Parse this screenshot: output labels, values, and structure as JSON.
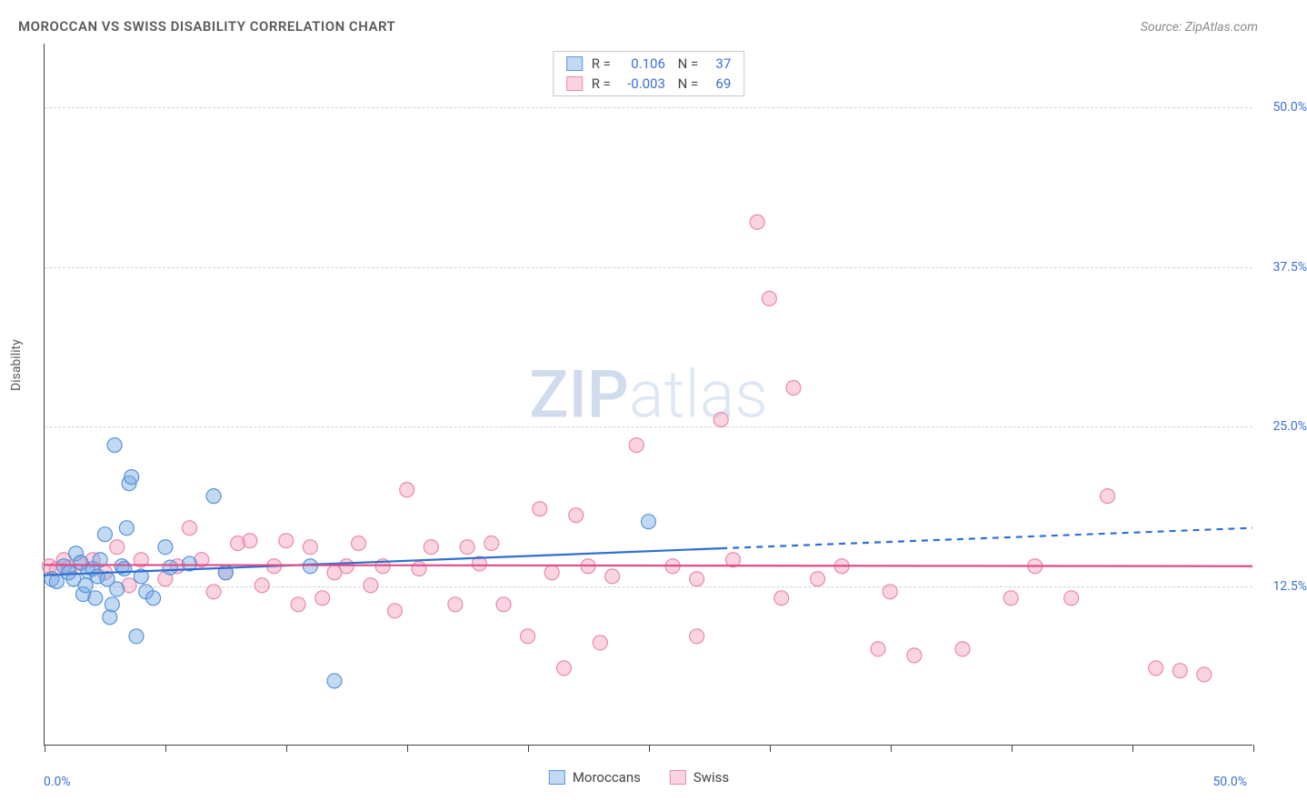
{
  "title": "MOROCCAN VS SWISS DISABILITY CORRELATION CHART",
  "source_label": "Source: ZipAtlas.com",
  "ylabel": "Disability",
  "watermark_a": "ZIP",
  "watermark_b": "atlas",
  "chart": {
    "type": "scatter",
    "xlim": [
      0,
      50
    ],
    "ylim": [
      0,
      55
    ],
    "x_range_labels": [
      "0.0%",
      "50.0%"
    ],
    "ytick_values": [
      12.5,
      25.0,
      37.5,
      50.0
    ],
    "ytick_labels": [
      "12.5%",
      "25.0%",
      "37.5%",
      "50.0%"
    ],
    "xtick_values": [
      0,
      5,
      10,
      15,
      20,
      25,
      30,
      35,
      40,
      45,
      50
    ],
    "grid_color": "#d0d0d0",
    "background_color": "#ffffff",
    "axis_color": "#444444",
    "marker_radius": 8,
    "marker_stroke_width": 1.2,
    "series": [
      {
        "name": "Moroccans",
        "fill": "rgba(120,170,230,0.45)",
        "stroke": "#5a93d6",
        "line_color": "#2f6fd0",
        "R": "0.106",
        "N": "37",
        "trend": {
          "x1": 0,
          "y1": 13.3,
          "x2_solid": 28,
          "y2_solid": 15.4,
          "x2": 50,
          "y2": 17.0
        },
        "points": [
          [
            0.3,
            13.0
          ],
          [
            0.5,
            12.8
          ],
          [
            0.8,
            14.0
          ],
          [
            1.0,
            13.5
          ],
          [
            1.2,
            13.0
          ],
          [
            1.3,
            15.0
          ],
          [
            1.5,
            14.3
          ],
          [
            1.6,
            11.8
          ],
          [
            1.7,
            12.5
          ],
          [
            1.8,
            13.6
          ],
          [
            2.0,
            13.8
          ],
          [
            2.1,
            11.5
          ],
          [
            2.2,
            13.2
          ],
          [
            2.3,
            14.5
          ],
          [
            2.5,
            16.5
          ],
          [
            2.6,
            13.0
          ],
          [
            2.7,
            10.0
          ],
          [
            2.8,
            11.0
          ],
          [
            2.9,
            23.5
          ],
          [
            3.0,
            12.2
          ],
          [
            3.2,
            14.0
          ],
          [
            3.3,
            13.8
          ],
          [
            3.4,
            17.0
          ],
          [
            3.5,
            20.5
          ],
          [
            3.6,
            21.0
          ],
          [
            3.8,
            8.5
          ],
          [
            4.0,
            13.2
          ],
          [
            4.2,
            12.0
          ],
          [
            4.5,
            11.5
          ],
          [
            5.0,
            15.5
          ],
          [
            5.2,
            13.9
          ],
          [
            6.0,
            14.2
          ],
          [
            7.0,
            19.5
          ],
          [
            7.5,
            13.5
          ],
          [
            11.0,
            14.0
          ],
          [
            12.0,
            5.0
          ],
          [
            25.0,
            17.5
          ]
        ]
      },
      {
        "name": "Swiss",
        "fill": "rgba(245,160,190,0.45)",
        "stroke": "#e88aac",
        "line_color": "#e04a86",
        "R": "-0.003",
        "N": "69",
        "trend": {
          "x1": 0,
          "y1": 14.1,
          "x2_solid": 50,
          "y2_solid": 14.0,
          "x2": 50,
          "y2": 14.0
        },
        "points": [
          [
            0.2,
            14.0
          ],
          [
            0.5,
            13.8
          ],
          [
            0.8,
            14.5
          ],
          [
            1.0,
            13.9
          ],
          [
            1.5,
            14.2
          ],
          [
            2.0,
            14.5
          ],
          [
            2.5,
            13.5
          ],
          [
            3.0,
            15.5
          ],
          [
            3.5,
            12.5
          ],
          [
            4.0,
            14.5
          ],
          [
            5.0,
            13.0
          ],
          [
            5.5,
            14.0
          ],
          [
            6.0,
            17.0
          ],
          [
            6.5,
            14.5
          ],
          [
            7.0,
            12.0
          ],
          [
            7.5,
            13.5
          ],
          [
            8.0,
            15.8
          ],
          [
            8.5,
            16.0
          ],
          [
            9.0,
            12.5
          ],
          [
            9.5,
            14.0
          ],
          [
            10.0,
            16.0
          ],
          [
            10.5,
            11.0
          ],
          [
            11.0,
            15.5
          ],
          [
            11.5,
            11.5
          ],
          [
            12.0,
            13.5
          ],
          [
            12.5,
            14.0
          ],
          [
            13.0,
            15.8
          ],
          [
            13.5,
            12.5
          ],
          [
            14.0,
            14.0
          ],
          [
            14.5,
            10.5
          ],
          [
            15.0,
            20.0
          ],
          [
            15.5,
            13.8
          ],
          [
            16.0,
            15.5
          ],
          [
            17.0,
            11.0
          ],
          [
            17.5,
            15.5
          ],
          [
            18.0,
            14.2
          ],
          [
            18.5,
            15.8
          ],
          [
            19.0,
            11.0
          ],
          [
            20.0,
            8.5
          ],
          [
            20.5,
            18.5
          ],
          [
            21.0,
            13.5
          ],
          [
            21.5,
            6.0
          ],
          [
            22.0,
            18.0
          ],
          [
            22.5,
            14.0
          ],
          [
            23.0,
            8.0
          ],
          [
            23.5,
            13.2
          ],
          [
            24.5,
            23.5
          ],
          [
            26.0,
            14.0
          ],
          [
            27.0,
            8.5
          ],
          [
            27.0,
            13.0
          ],
          [
            28.0,
            25.5
          ],
          [
            28.5,
            14.5
          ],
          [
            29.5,
            41.0
          ],
          [
            30.0,
            35.0
          ],
          [
            30.5,
            11.5
          ],
          [
            31.0,
            28.0
          ],
          [
            32.0,
            13.0
          ],
          [
            33.0,
            14.0
          ],
          [
            34.5,
            7.5
          ],
          [
            35.0,
            12.0
          ],
          [
            36.0,
            7.0
          ],
          [
            38.0,
            7.5
          ],
          [
            40.0,
            11.5
          ],
          [
            41.0,
            14.0
          ],
          [
            42.5,
            11.5
          ],
          [
            44.0,
            19.5
          ],
          [
            46.0,
            6.0
          ],
          [
            47.0,
            5.8
          ],
          [
            48.0,
            5.5
          ]
        ]
      }
    ]
  },
  "legend_bottom": [
    {
      "label": "Moroccans",
      "fill": "rgba(120,170,230,0.55)",
      "stroke": "#5a93d6"
    },
    {
      "label": "Swiss",
      "fill": "rgba(245,160,190,0.55)",
      "stroke": "#e88aac"
    }
  ]
}
